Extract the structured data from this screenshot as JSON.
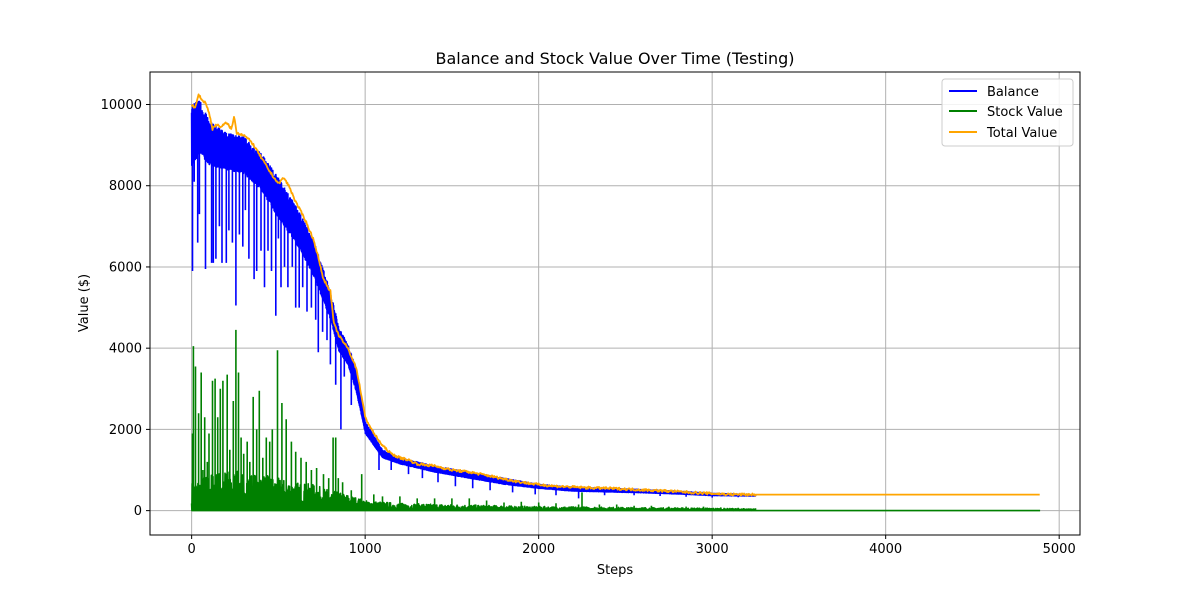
{
  "chart_data": {
    "type": "line",
    "title": "Balance and Stock Value Over Time (Testing)",
    "xlabel": "Steps",
    "ylabel": "Value ($)",
    "xlim": [
      -240,
      5120
    ],
    "ylim": [
      -600,
      10800
    ],
    "xticks": [
      0,
      1000,
      2000,
      3000,
      4000,
      5000
    ],
    "yticks": [
      0,
      2000,
      4000,
      6000,
      8000,
      10000
    ],
    "grid": true,
    "legend_position": "top-right",
    "series": [
      {
        "name": "Balance",
        "color": "#0000ff",
        "upper": [
          [
            0,
            10000
          ],
          [
            50,
            10100
          ],
          [
            100,
            9600
          ],
          [
            200,
            9300
          ],
          [
            300,
            9200
          ],
          [
            400,
            8800
          ],
          [
            500,
            8200
          ],
          [
            600,
            7500
          ],
          [
            700,
            6700
          ],
          [
            800,
            5400
          ],
          [
            850,
            4500
          ],
          [
            900,
            4100
          ],
          [
            950,
            3500
          ],
          [
            1000,
            2200
          ],
          [
            1100,
            1500
          ],
          [
            1200,
            1300
          ],
          [
            1400,
            1100
          ],
          [
            1600,
            950
          ],
          [
            1800,
            800
          ],
          [
            2000,
            650
          ],
          [
            2200,
            580
          ],
          [
            2400,
            550
          ],
          [
            2600,
            520
          ],
          [
            2800,
            480
          ],
          [
            3000,
            430
          ],
          [
            3250,
            390
          ]
        ],
        "lower": [
          [
            0,
            8500
          ],
          [
            50,
            8800
          ],
          [
            100,
            8500
          ],
          [
            200,
            8400
          ],
          [
            300,
            8300
          ],
          [
            400,
            7900
          ],
          [
            500,
            7200
          ],
          [
            600,
            6600
          ],
          [
            700,
            5800
          ],
          [
            800,
            4700
          ],
          [
            850,
            3900
          ],
          [
            900,
            3600
          ],
          [
            950,
            2900
          ],
          [
            1000,
            1900
          ],
          [
            1100,
            1300
          ],
          [
            1200,
            1150
          ],
          [
            1400,
            950
          ],
          [
            1600,
            800
          ],
          [
            1800,
            650
          ],
          [
            2000,
            550
          ],
          [
            2200,
            480
          ],
          [
            2400,
            460
          ],
          [
            2600,
            440
          ],
          [
            2800,
            410
          ],
          [
            3000,
            370
          ],
          [
            3250,
            360
          ]
        ],
        "dips": [
          [
            5,
            5900
          ],
          [
            15,
            8100
          ],
          [
            35,
            6600
          ],
          [
            45,
            7300
          ],
          [
            80,
            5950
          ],
          [
            115,
            6100
          ],
          [
            125,
            6100
          ],
          [
            140,
            6200
          ],
          [
            160,
            7000
          ],
          [
            175,
            6100
          ],
          [
            200,
            6100
          ],
          [
            215,
            6900
          ],
          [
            235,
            6600
          ],
          [
            255,
            5050
          ],
          [
            275,
            6800
          ],
          [
            295,
            6500
          ],
          [
            310,
            7400
          ],
          [
            330,
            6200
          ],
          [
            360,
            5700
          ],
          [
            375,
            5900
          ],
          [
            400,
            6400
          ],
          [
            420,
            5500
          ],
          [
            440,
            6400
          ],
          [
            460,
            5900
          ],
          [
            485,
            4800
          ],
          [
            500,
            6700
          ],
          [
            515,
            5500
          ],
          [
            535,
            6000
          ],
          [
            555,
            5500
          ],
          [
            580,
            6000
          ],
          [
            600,
            5000
          ],
          [
            620,
            5000
          ],
          [
            640,
            5500
          ],
          [
            665,
            4900
          ],
          [
            690,
            5000
          ],
          [
            715,
            4700
          ],
          [
            730,
            3900
          ],
          [
            755,
            4400
          ],
          [
            780,
            4200
          ],
          [
            800,
            3600
          ],
          [
            830,
            3100
          ],
          [
            860,
            2000
          ],
          [
            880,
            3300
          ],
          [
            920,
            2600
          ],
          [
            960,
            2700
          ],
          [
            1020,
            1800
          ],
          [
            1080,
            1000
          ],
          [
            1150,
            1000
          ],
          [
            1250,
            900
          ],
          [
            1330,
            800
          ],
          [
            1420,
            700
          ],
          [
            1520,
            600
          ],
          [
            1620,
            550
          ],
          [
            1720,
            500
          ],
          [
            1850,
            450
          ],
          [
            1980,
            400
          ],
          [
            2100,
            380
          ],
          [
            2230,
            300
          ],
          [
            2380,
            380
          ],
          [
            2550,
            380
          ],
          [
            2700,
            360
          ],
          [
            2850,
            340
          ],
          [
            3000,
            320
          ],
          [
            3150,
            330
          ]
        ]
      },
      {
        "name": "Stock Value",
        "color": "#008000",
        "spikes": [
          [
            5,
            1900
          ],
          [
            10,
            4050
          ],
          [
            22,
            3550
          ],
          [
            40,
            2400
          ],
          [
            55,
            3400
          ],
          [
            65,
            1000
          ],
          [
            75,
            2300
          ],
          [
            90,
            1200
          ],
          [
            100,
            1900
          ],
          [
            120,
            3200
          ],
          [
            135,
            3250
          ],
          [
            150,
            2300
          ],
          [
            165,
            3000
          ],
          [
            180,
            3200
          ],
          [
            205,
            3350
          ],
          [
            220,
            1500
          ],
          [
            240,
            2700
          ],
          [
            255,
            4450
          ],
          [
            270,
            3400
          ],
          [
            285,
            1800
          ],
          [
            300,
            1400
          ],
          [
            320,
            1700
          ],
          [
            335,
            1200
          ],
          [
            355,
            2800
          ],
          [
            375,
            2000
          ],
          [
            390,
            2950
          ],
          [
            410,
            1300
          ],
          [
            430,
            1800
          ],
          [
            450,
            1700
          ],
          [
            465,
            2000
          ],
          [
            495,
            3950
          ],
          [
            520,
            2650
          ],
          [
            545,
            2250
          ],
          [
            575,
            1700
          ],
          [
            600,
            1450
          ],
          [
            630,
            1300
          ],
          [
            660,
            1200
          ],
          [
            690,
            1000
          ],
          [
            720,
            1050
          ],
          [
            760,
            900
          ],
          [
            790,
            800
          ],
          [
            815,
            1800
          ],
          [
            830,
            1800
          ],
          [
            845,
            800
          ],
          [
            870,
            700
          ],
          [
            920,
            500
          ],
          [
            980,
            900
          ],
          [
            1050,
            400
          ],
          [
            1100,
            350
          ],
          [
            1200,
            350
          ],
          [
            1300,
            300
          ],
          [
            1400,
            300
          ],
          [
            1500,
            300
          ],
          [
            1600,
            300
          ],
          [
            1700,
            250
          ],
          [
            1800,
            200
          ],
          [
            1900,
            220
          ],
          [
            2000,
            200
          ],
          [
            2100,
            180
          ],
          [
            2230,
            150
          ],
          [
            2250,
            450
          ],
          [
            2350,
            150
          ],
          [
            2450,
            150
          ],
          [
            2550,
            120
          ],
          [
            2650,
            120
          ],
          [
            2750,
            100
          ],
          [
            2850,
            100
          ],
          [
            2950,
            100
          ],
          [
            3050,
            80
          ],
          [
            3150,
            70
          ],
          [
            3250,
            60
          ]
        ],
        "band_top": [
          [
            0,
            700
          ],
          [
            100,
            900
          ],
          [
            200,
            1000
          ],
          [
            300,
            950
          ],
          [
            400,
            900
          ],
          [
            500,
            800
          ],
          [
            600,
            700
          ],
          [
            700,
            650
          ],
          [
            800,
            500
          ],
          [
            900,
            400
          ],
          [
            1000,
            250
          ],
          [
            1200,
            180
          ],
          [
            1500,
            150
          ],
          [
            2000,
            100
          ],
          [
            2500,
            80
          ],
          [
            3000,
            60
          ],
          [
            3250,
            40
          ]
        ],
        "flat_start": 3250,
        "flat_end": 4890,
        "flat_value": 0
      },
      {
        "name": "Total Value",
        "color": "#ffa500",
        "points": [
          [
            0,
            10000
          ],
          [
            20,
            9900
          ],
          [
            40,
            10250
          ],
          [
            60,
            10100
          ],
          [
            80,
            10050
          ],
          [
            100,
            9800
          ],
          [
            120,
            9400
          ],
          [
            140,
            9500
          ],
          [
            170,
            9450
          ],
          [
            200,
            9550
          ],
          [
            230,
            9400
          ],
          [
            245,
            9700
          ],
          [
            260,
            9300
          ],
          [
            300,
            9250
          ],
          [
            350,
            9050
          ],
          [
            400,
            8700
          ],
          [
            450,
            8350
          ],
          [
            500,
            8050
          ],
          [
            530,
            8200
          ],
          [
            560,
            8000
          ],
          [
            600,
            7600
          ],
          [
            650,
            7200
          ],
          [
            700,
            6700
          ],
          [
            720,
            6400
          ],
          [
            760,
            5700
          ],
          [
            800,
            5400
          ],
          [
            820,
            4600
          ],
          [
            850,
            4300
          ],
          [
            900,
            4000
          ],
          [
            950,
            3500
          ],
          [
            980,
            2800
          ],
          [
            1000,
            2300
          ],
          [
            1050,
            1900
          ],
          [
            1100,
            1600
          ],
          [
            1150,
            1400
          ],
          [
            1200,
            1300
          ],
          [
            1250,
            1250
          ],
          [
            1300,
            1150
          ],
          [
            1400,
            1100
          ],
          [
            1500,
            1000
          ],
          [
            1600,
            950
          ],
          [
            1700,
            870
          ],
          [
            1800,
            780
          ],
          [
            1900,
            700
          ],
          [
            2000,
            640
          ],
          [
            2100,
            600
          ],
          [
            2200,
            580
          ],
          [
            2300,
            560
          ],
          [
            2400,
            550
          ],
          [
            2500,
            530
          ],
          [
            2600,
            510
          ],
          [
            2700,
            490
          ],
          [
            2800,
            470
          ],
          [
            2900,
            440
          ],
          [
            3000,
            420
          ],
          [
            3100,
            400
          ],
          [
            3250,
            395
          ],
          [
            4890,
            395
          ]
        ]
      }
    ]
  }
}
